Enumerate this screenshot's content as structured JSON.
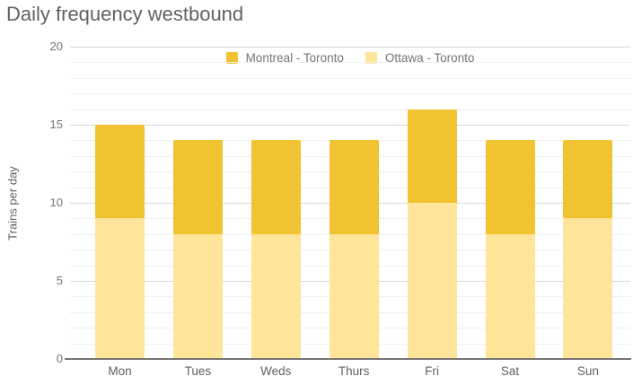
{
  "title": "Daily frequency westbound",
  "chart_data": {
    "type": "bar",
    "stacked": true,
    "title": "Daily frequency westbound",
    "xlabel": "",
    "ylabel": "Trains per day",
    "categories": [
      "Mon",
      "Tues",
      "Weds",
      "Thurs",
      "Fri",
      "Sat",
      "Sun"
    ],
    "series": [
      {
        "name": "Montreal - Toronto",
        "color": "#F1C232",
        "stack_position": "top",
        "values": [
          6,
          6,
          6,
          6,
          6,
          6,
          5
        ]
      },
      {
        "name": "Ottawa - Toronto",
        "color": "#FFE599",
        "stack_position": "bottom",
        "values": [
          9,
          8,
          8,
          8,
          10,
          8,
          9
        ]
      }
    ],
    "stack_totals": [
      15,
      14,
      14,
      14,
      16,
      14,
      14
    ],
    "ylim": [
      0,
      20
    ],
    "yticks": [
      0,
      5,
      10,
      15,
      20
    ],
    "minor_gridline_unit": 1,
    "grid": "on",
    "legend_position": "top-center"
  },
  "colors": {
    "background": "#FFFFFF",
    "title_text": "#616161",
    "axis_text": "#757575",
    "major_gridline": "#D9D9D9",
    "minor_gridline": "#F0F0F0",
    "axis_baseline": "#757575",
    "series_montreal": "#F1C232",
    "series_ottawa": "#FFE599"
  }
}
